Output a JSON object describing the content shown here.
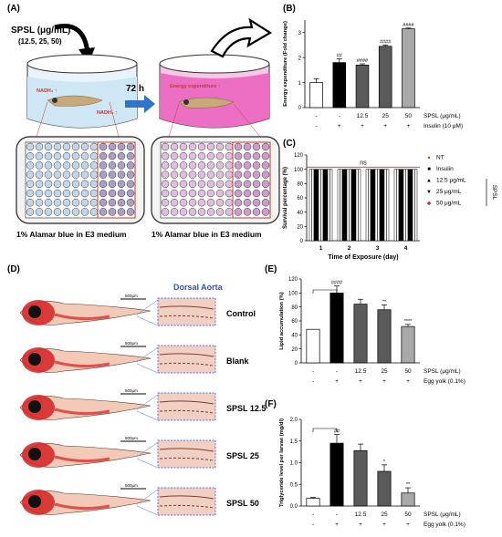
{
  "panels": {
    "A": {
      "letter": "(A)",
      "compound": "SPSL (μg/mL)",
      "doses": "(12.5, 25, 50)",
      "nadh_top": "NADH₂ ↑",
      "nadh_bottom": "NADH₂ ↑",
      "time": "72 h",
      "energy": "Energy expenditure ↑",
      "plate_label_left": "1% Alamar blue in E3 medium",
      "plate_label_right": "1% Alamar blue in E3 medium"
    },
    "B": {
      "letter": "(B)",
      "row1_label": "SPSL (μg/mL)",
      "row2_label": "Insulin (10 μM)"
    },
    "C": {
      "letter": "(C)",
      "ns": "ns",
      "group_label": "SPSL"
    },
    "D": {
      "letter": "(D)",
      "header": "Dorsal Aorta",
      "scale": "500μm",
      "rows": [
        "Control",
        "Blank",
        "SPSL 12.5",
        "SPSL 25",
        "SPSL 50"
      ]
    },
    "E": {
      "letter": "(E)",
      "row1_label": "SPSL (μg/mL)",
      "row2_label": "Egg yolk (0.1%)"
    },
    "F": {
      "letter": "(F)",
      "row1_label": "SPSL (μg/mL)",
      "row2_label": "Egg yolk (0.1%)"
    }
  },
  "colors": {
    "black": "#000000",
    "dark_gray": "#5a5a5a",
    "light_gray": "#a8a8a8",
    "white": "#ffffff",
    "red": "#d62728",
    "beaker_blue": "#cfe6f5",
    "beaker_pink": "#ec6fc4",
    "arrow_blue": "#2e74c9",
    "plate_blue": "#8fb4d4",
    "plate_pink": "#c78ac0",
    "frame_blue": "#5b6fd1"
  },
  "chart_data": [
    {
      "panel": "B",
      "type": "bar",
      "ylabel": "Energy expenditure (Fold change)",
      "ylim": [
        0,
        3.5
      ],
      "yticks": [
        "0",
        "1",
        "2",
        "3"
      ],
      "categories": [
        "-",
        "-",
        "12.5",
        "25",
        "50"
      ],
      "row2": [
        "-",
        "+",
        "+",
        "+",
        "+"
      ],
      "values": [
        1.0,
        1.8,
        1.7,
        2.45,
        3.15
      ],
      "errors": [
        0.15,
        0.15,
        0.05,
        0.05,
        0.03
      ],
      "fills": [
        "white",
        "black",
        "dark_gray",
        "dark_gray",
        "light_gray"
      ],
      "sig": [
        "",
        "##",
        "####",
        "####",
        "####"
      ]
    },
    {
      "panel": "C",
      "type": "bar",
      "ylabel": "Survival percentage (%)",
      "xlabel": "Time of Exposure (day)",
      "ylim": [
        0,
        120
      ],
      "yticks": [
        "0",
        "20",
        "40",
        "60",
        "80",
        "100",
        "120"
      ],
      "categories": [
        "1",
        "2",
        "3",
        "4"
      ],
      "series": [
        {
          "name": "NT",
          "values": [
            100,
            100,
            100,
            100
          ],
          "marker": "●"
        },
        {
          "name": "Insulin",
          "values": [
            100,
            100,
            100,
            100
          ],
          "marker": "■"
        },
        {
          "name": "12.5 μg/mL",
          "values": [
            100,
            100,
            100,
            100
          ],
          "marker": "▲"
        },
        {
          "name": "25 μg/mL",
          "values": [
            100,
            100,
            100,
            100
          ],
          "marker": "▼"
        },
        {
          "name": "50 μg/mL",
          "values": [
            100,
            100,
            100,
            100
          ],
          "marker": "◆"
        }
      ]
    },
    {
      "panel": "E",
      "type": "bar",
      "ylabel": "Lipid accumulation (%)",
      "ylim": [
        0,
        120
      ],
      "yticks": [
        "0",
        "20",
        "40",
        "60",
        "80",
        "100",
        "120"
      ],
      "categories": [
        "-",
        "-",
        "12.5",
        "25",
        "50"
      ],
      "row2": [
        "-",
        "+",
        "+",
        "+",
        "+"
      ],
      "values": [
        48,
        100,
        84,
        76,
        52
      ],
      "errors": [
        0,
        10,
        7,
        7,
        3
      ],
      "fills": [
        "white",
        "black",
        "dark_gray",
        "dark_gray",
        "light_gray"
      ],
      "sig": [
        "",
        "####",
        "",
        "**",
        "****"
      ]
    },
    {
      "panel": "F",
      "type": "bar",
      "ylabel": "Triglyceride level per larvae (mg/dl)",
      "ylim": [
        0,
        2.0
      ],
      "yticks": [
        "0.0",
        "0.5",
        "1.0",
        "1.5",
        "2.0"
      ],
      "categories": [
        "-",
        "-",
        "12.5",
        "25",
        "50"
      ],
      "row2": [
        "-",
        "+",
        "+",
        "+",
        "+"
      ],
      "values": [
        0.18,
        1.45,
        1.28,
        0.8,
        0.3
      ],
      "errors": [
        0.02,
        0.2,
        0.15,
        0.15,
        0.12
      ],
      "fills": [
        "white",
        "black",
        "dark_gray",
        "dark_gray",
        "light_gray"
      ],
      "sig": [
        "",
        "##",
        "",
        "*",
        "**"
      ]
    }
  ]
}
